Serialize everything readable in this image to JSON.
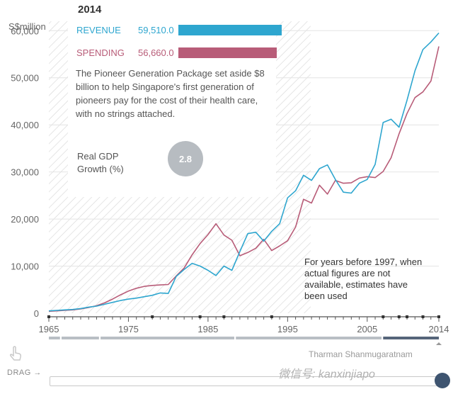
{
  "year_label": "2014",
  "legend": {
    "revenue_label": "REVENUE",
    "revenue_value": "59,510.0",
    "revenue_color": "#2ea6cf",
    "spending_label": "SPENDING",
    "spending_value": "56,660.0",
    "spending_color": "#b85c78"
  },
  "description": "The Pioneer Generation Package set aside $8 billion to help Singapore's first generation of pioneers pay for the cost of their health care, with no strings attached.",
  "gdp": {
    "label": "Real GDP Growth (%)",
    "value": "2.8"
  },
  "note": "For years before 1997, when actual figures are not available, estimates have been used",
  "drag_label": "DRAG",
  "caption": "Tharman Shanmugaratnam",
  "watermark": "微信号: kanxinjiapo",
  "chart_data": {
    "type": "line",
    "title": "",
    "ylabel": "S$million",
    "xlabel": "",
    "xlim": [
      1965,
      2014
    ],
    "ylim": [
      0,
      62000
    ],
    "estimate_shading_before": 1997,
    "x_ticks": [
      1965,
      1975,
      1985,
      1995,
      2005,
      2014
    ],
    "y_ticks": [
      0,
      10000,
      20000,
      30000,
      40000,
      50000,
      60000
    ],
    "y_tick_labels": [
      "0",
      "10,000",
      "20,000",
      "30,000",
      "40,000",
      "50,000",
      "60,000"
    ],
    "x": [
      1965,
      1966,
      1967,
      1968,
      1969,
      1970,
      1971,
      1972,
      1973,
      1974,
      1975,
      1976,
      1977,
      1978,
      1979,
      1980,
      1981,
      1982,
      1983,
      1984,
      1985,
      1986,
      1987,
      1988,
      1989,
      1990,
      1991,
      1992,
      1993,
      1994,
      1995,
      1996,
      1997,
      1998,
      1999,
      2000,
      2001,
      2002,
      2003,
      2004,
      2005,
      2006,
      2007,
      2008,
      2009,
      2010,
      2011,
      2012,
      2013,
      2014
    ],
    "series": [
      {
        "name": "REVENUE",
        "color": "#2ea6cf",
        "values": [
          500,
          600,
          700,
          800,
          1000,
          1300,
          1500,
          1900,
          2300,
          2700,
          3000,
          3200,
          3500,
          3800,
          4300,
          4200,
          7800,
          9300,
          10600,
          10000,
          9100,
          8000,
          10000,
          9100,
          13100,
          16900,
          17200,
          15300,
          17400,
          19000,
          24500,
          26000,
          29300,
          28200,
          30700,
          31500,
          28400,
          25700,
          25500,
          27600,
          28400,
          31600,
          40500,
          41200,
          39500,
          45200,
          51500,
          56000,
          57600,
          59510
        ]
      },
      {
        "name": "SPENDING",
        "color": "#b85c78",
        "values": [
          400,
          500,
          600,
          700,
          900,
          1200,
          1600,
          2200,
          3000,
          3900,
          4700,
          5300,
          5700,
          5900,
          6000,
          6100,
          7900,
          9600,
          12400,
          14800,
          16700,
          19000,
          16600,
          15500,
          12200,
          12900,
          13800,
          15700,
          13300,
          14300,
          15400,
          18300,
          24200,
          23400,
          27200,
          25300,
          28200,
          27600,
          27700,
          28700,
          29000,
          28800,
          30100,
          33000,
          38100,
          42400,
          45800,
          47000,
          49300,
          56660
        ]
      }
    ]
  }
}
